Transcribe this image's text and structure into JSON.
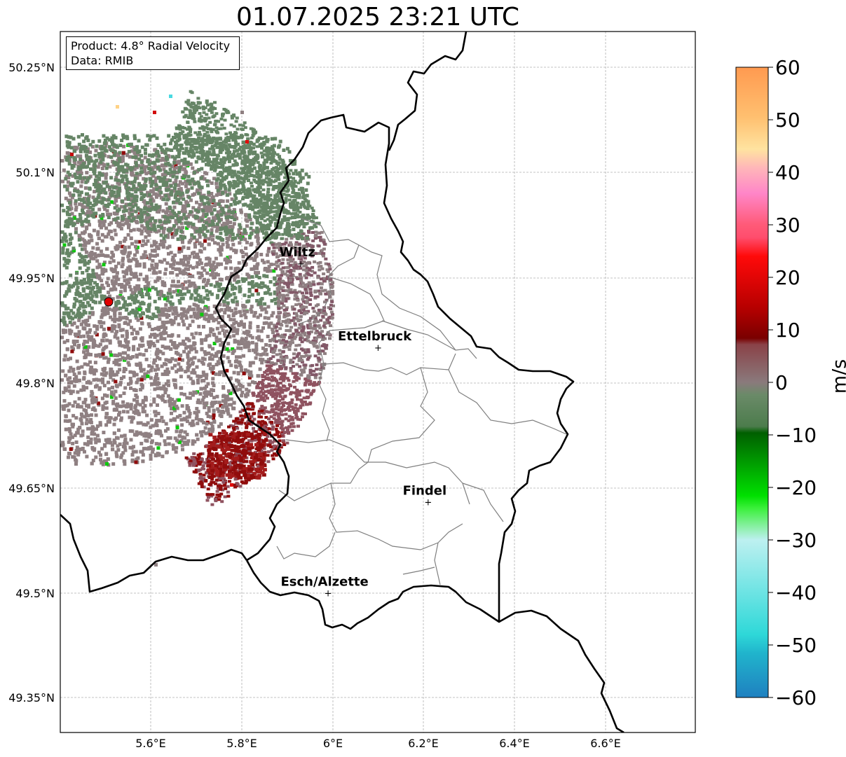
{
  "title": "01.07.2025 23:21 UTC",
  "info": {
    "product": "Product: 4.8° Radial Velocity",
    "data": "Data: RMIB"
  },
  "map": {
    "lat_ticks": [
      "50.25°N",
      "50.1°N",
      "49.95°N",
      "49.8°N",
      "49.65°N",
      "49.5°N",
      "49.35°N"
    ],
    "lon_ticks": [
      "5.6°E",
      "5.8°E",
      "6°E",
      "6.2°E",
      "6.4°E",
      "6.6°E"
    ],
    "cities": [
      {
        "name": "Wiltz",
        "lat": 49.97,
        "lon": 5.93
      },
      {
        "name": "Ettelbruck",
        "lat": 49.85,
        "lon": 6.1
      },
      {
        "name": "Findel",
        "lat": 49.63,
        "lon": 6.21
      },
      {
        "name": "Esch/Alzette",
        "lat": 49.5,
        "lon": 5.99
      }
    ],
    "radar_site": {
      "lat": 49.914,
      "lon": 5.505
    }
  },
  "colorbar": {
    "label": "m/s",
    "min": -60,
    "max": 60,
    "ticks": [
      "60",
      "50",
      "40",
      "30",
      "20",
      "10",
      "0",
      "−10",
      "−20",
      "−30",
      "−40",
      "−50",
      "−60"
    ],
    "colors": {
      "positive_high": "#ffa15a",
      "positive_mid": "#ff4d6d",
      "positive_low": "#8b0000",
      "near_zero": "#8a7a7c",
      "negative_low": "#5e7f5e",
      "negative_mid": "#00c800",
      "negative_high": "#2a9fd6"
    }
  }
}
